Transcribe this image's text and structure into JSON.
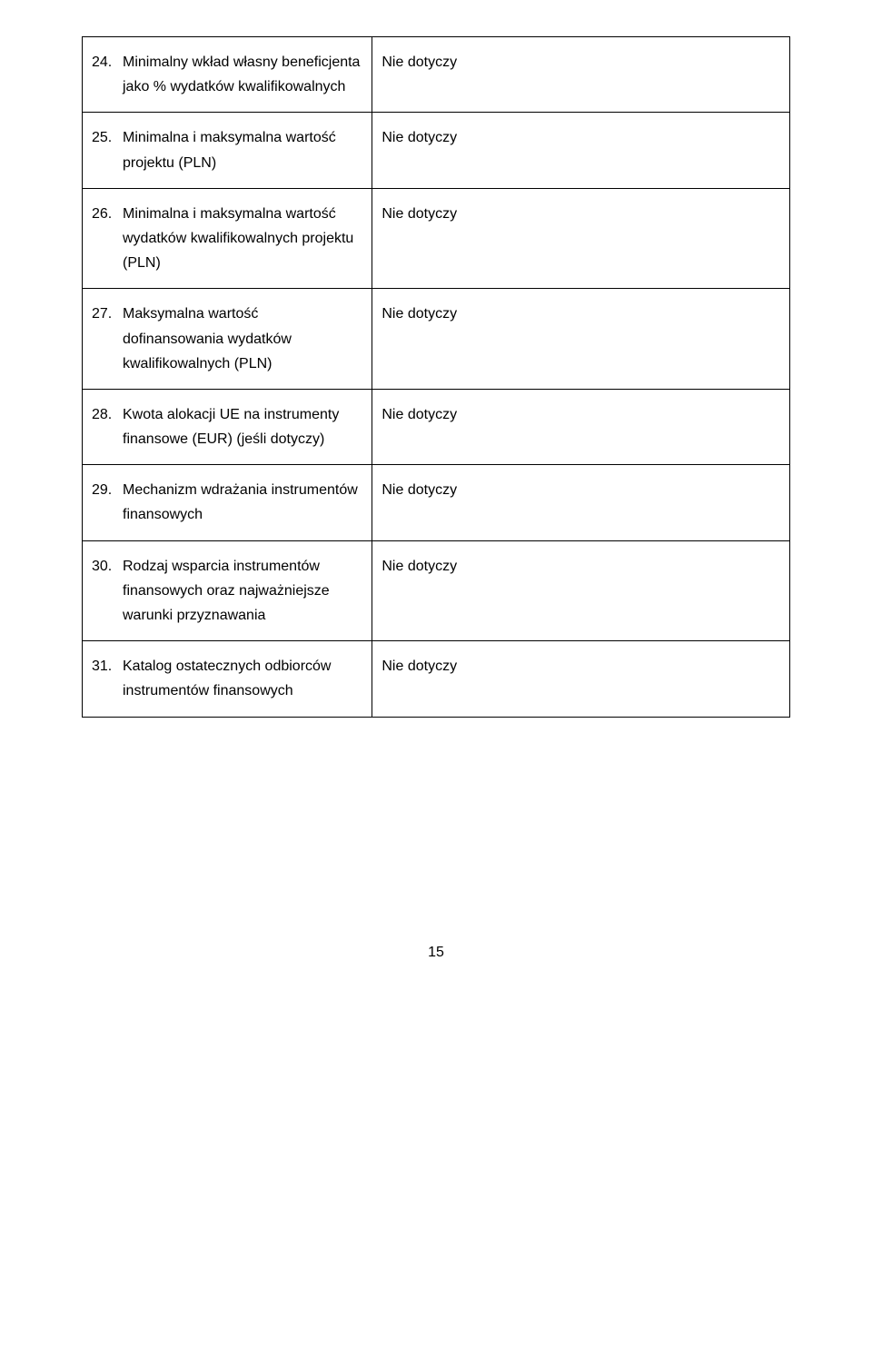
{
  "rows": [
    {
      "num": "24.",
      "label": "Minimalny wkład własny beneficjenta jako % wydatków kwalifikowalnych",
      "value": "Nie dotyczy"
    },
    {
      "num": "25.",
      "label": "Minimalna i maksymalna wartość projektu (PLN)",
      "value": "Nie dotyczy"
    },
    {
      "num": "26.",
      "label": "Minimalna i maksymalna wartość wydatków kwalifikowalnych projektu (PLN)",
      "value": "Nie dotyczy"
    },
    {
      "num": "27.",
      "label": "Maksymalna wartość dofinansowania wydatków kwalifikowalnych (PLN)",
      "value": "Nie dotyczy"
    },
    {
      "num": "28.",
      "label": "Kwota alokacji UE na instrumenty finansowe (EUR) (jeśli dotyczy)",
      "value": "Nie dotyczy"
    },
    {
      "num": "29.",
      "label": "Mechanizm wdrażania instrumentów finansowych",
      "value": "Nie dotyczy"
    },
    {
      "num": "30.",
      "label": "Rodzaj wsparcia instrumentów finansowych oraz najważniejsze warunki przyznawania",
      "value": "Nie dotyczy"
    },
    {
      "num": "31.",
      "label": "Katalog ostatecznych odbiorców instrumentów finansowych",
      "value": "Nie dotyczy"
    }
  ],
  "page_number": "15"
}
